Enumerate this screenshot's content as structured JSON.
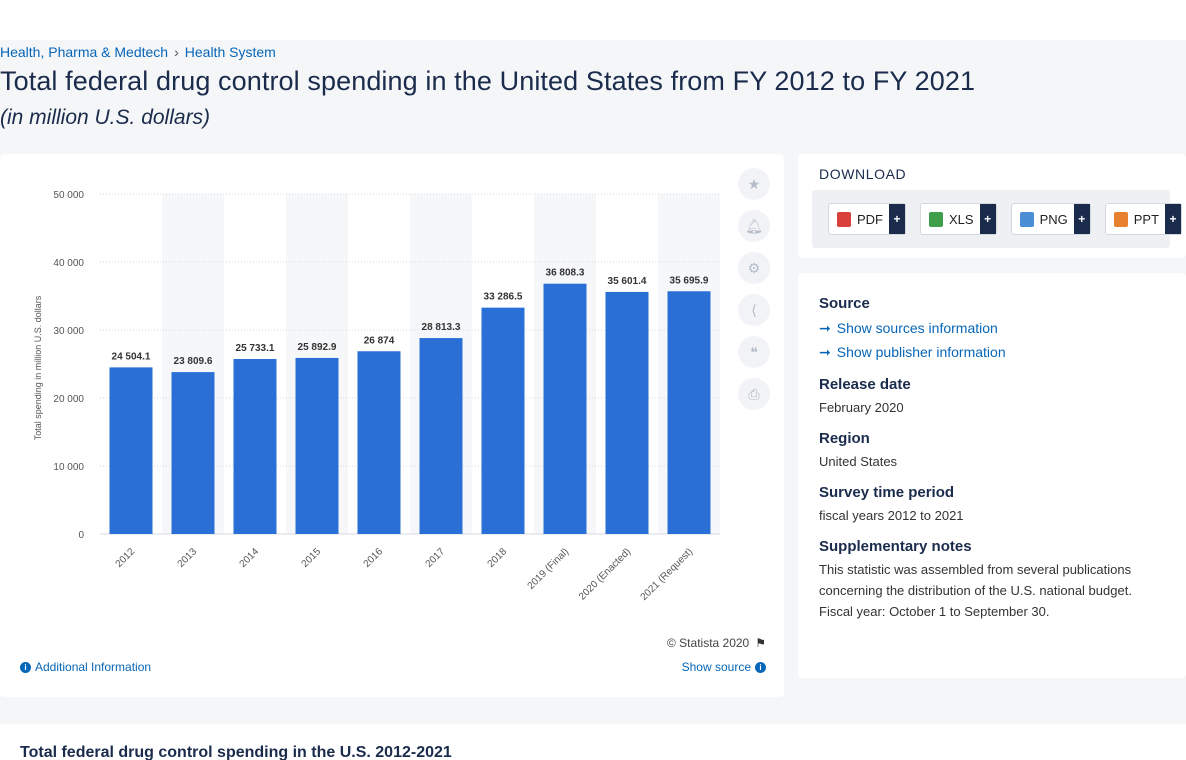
{
  "breadcrumb": [
    "Health, Pharma & Medtech",
    "Health System"
  ],
  "page_title": "Total federal drug control spending in the United States from FY 2012 to FY 2021",
  "page_subtitle": "(in million U.S. dollars)",
  "chart_data": {
    "type": "bar",
    "categories": [
      "2012",
      "2013",
      "2014",
      "2015",
      "2016",
      "2017",
      "2018",
      "2019 (Final)",
      "2020 (Enacted)",
      "2021 (Request)"
    ],
    "values": [
      24504.1,
      23809.6,
      25733.1,
      25892.9,
      26874,
      28813.3,
      33286.5,
      36808.3,
      35601.4,
      35695.9
    ],
    "value_labels": [
      "24 504.1",
      "23 809.6",
      "25 733.1",
      "25 892.9",
      "26 874",
      "28 813.3",
      "33 286.5",
      "36 808.3",
      "35 601.4",
      "35 695.9"
    ],
    "ylabel": "Total spending in million U.S. dollars",
    "ylim": [
      0,
      50000
    ],
    "yticks": [
      0,
      10000,
      20000,
      30000,
      40000,
      50000
    ],
    "ytick_labels": [
      "0",
      "10 000",
      "20 000",
      "30 000",
      "40 000",
      "50 000"
    ],
    "bar_color": "#2a6fd6",
    "grid": true
  },
  "chart_footer": {
    "copyright": "© Statista 2020",
    "additional_info": "Additional Information",
    "show_source": "Show source"
  },
  "tools": [
    "star-icon",
    "bell-icon",
    "gear-icon",
    "share-icon",
    "quote-icon",
    "print-icon"
  ],
  "download": {
    "title": "DOWNLOAD",
    "buttons": [
      {
        "label": "PDF",
        "color": "#d9403a"
      },
      {
        "label": "XLS",
        "color": "#3f9e4a"
      },
      {
        "label": "PNG",
        "color": "#4a8fd6"
      },
      {
        "label": "PPT",
        "color": "#e8812e"
      }
    ]
  },
  "meta": {
    "source_h": "Source",
    "show_sources": "Show sources information",
    "show_publisher": "Show publisher information",
    "release_h": "Release date",
    "release": "February 2020",
    "region_h": "Region",
    "region": "United States",
    "survey_h": "Survey time period",
    "survey": "fiscal years 2012 to 2021",
    "notes_h": "Supplementary notes",
    "notes_1": "This statistic was assembled from several publications concerning the distribution of the U.S. national budget.",
    "notes_2": "Fiscal year: October 1 to September 30."
  },
  "bottom_title": "Total federal drug control spending in the U.S. 2012-2021"
}
